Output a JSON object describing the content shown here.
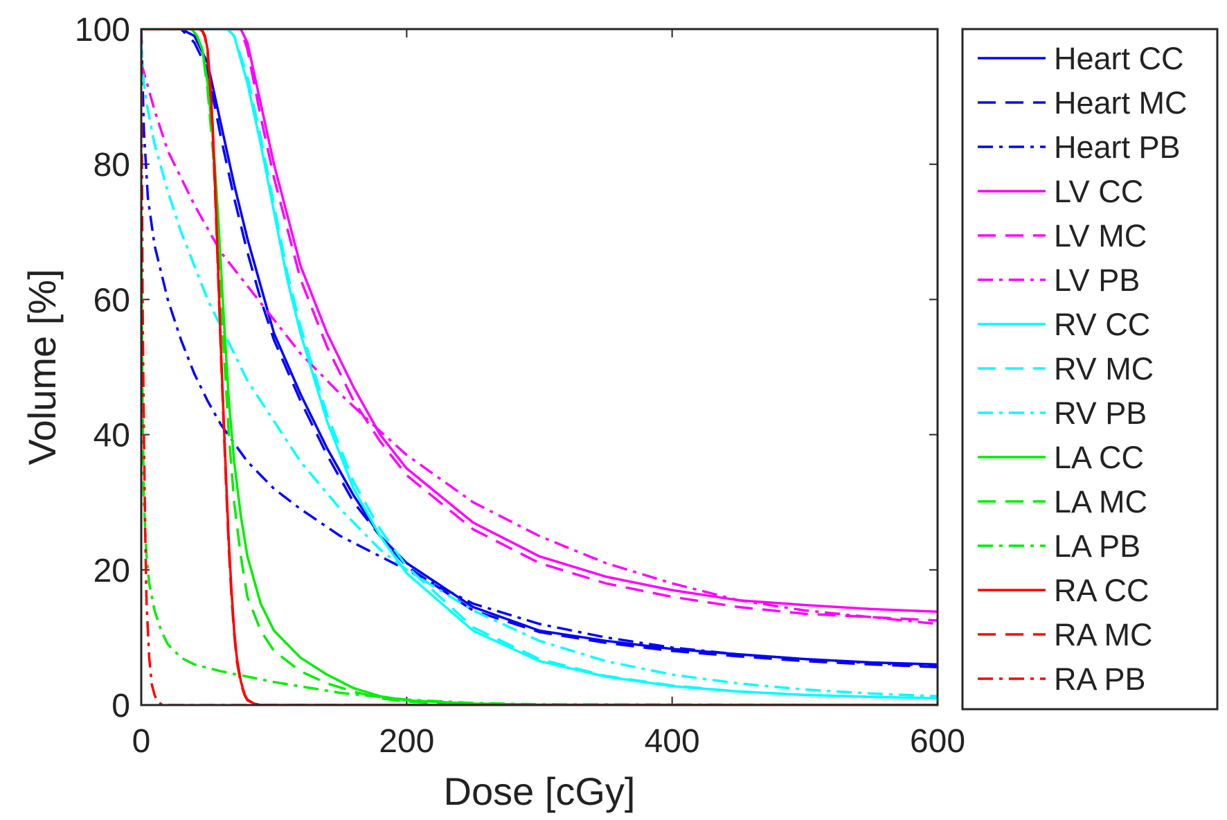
{
  "chart_data": {
    "type": "line",
    "title": "",
    "xlabel": "Dose [cGy]",
    "ylabel": "Volume [%]",
    "xlim": [
      0,
      600
    ],
    "ylim": [
      0,
      100
    ],
    "xticks": [
      0,
      200,
      400,
      600
    ],
    "yticks": [
      0,
      20,
      40,
      60,
      80,
      100
    ],
    "grid": false,
    "legend_position": "outside-right",
    "series": [
      {
        "name": "Heart CC",
        "color": "#0000ff",
        "dash": "solid",
        "x": [
          0,
          30,
          40,
          50,
          60,
          70,
          80,
          90,
          100,
          120,
          140,
          160,
          180,
          200,
          250,
          300,
          350,
          400,
          450,
          500,
          550,
          600
        ],
        "y": [
          100,
          100,
          99,
          95,
          86,
          77,
          69,
          62,
          55,
          46,
          38,
          31,
          25,
          21,
          14.5,
          11,
          9.5,
          8.3,
          7.5,
          6.8,
          6.3,
          6.0
        ]
      },
      {
        "name": "Heart MC",
        "color": "#0000ff",
        "dash": "dashed",
        "x": [
          0,
          30,
          40,
          50,
          60,
          70,
          80,
          90,
          100,
          120,
          140,
          160,
          180,
          200,
          250,
          300,
          350,
          400,
          450,
          500,
          550,
          600
        ],
        "y": [
          100,
          100,
          98,
          94,
          84,
          75,
          67,
          60,
          54,
          45,
          37,
          30,
          25,
          20.5,
          14,
          10.8,
          9.2,
          8.0,
          7.2,
          6.5,
          6.0,
          5.6
        ]
      },
      {
        "name": "Heart PB",
        "color": "#0000ff",
        "dash": "dashdot",
        "x": [
          0,
          2,
          5,
          10,
          20,
          30,
          40,
          50,
          60,
          80,
          100,
          120,
          150,
          180,
          200,
          250,
          300,
          350,
          400,
          450,
          500,
          550,
          600
        ],
        "y": [
          100,
          85,
          75,
          68,
          60,
          54,
          49,
          45,
          41.5,
          36,
          32,
          29,
          25,
          22,
          20,
          15,
          12,
          10,
          8.5,
          7.5,
          6.8,
          6.2,
          5.8
        ]
      },
      {
        "name": "LV CC",
        "color": "#ff00ff",
        "dash": "solid",
        "x": [
          0,
          60,
          70,
          75,
          80,
          90,
          100,
          120,
          140,
          160,
          180,
          200,
          250,
          300,
          350,
          400,
          450,
          500,
          550,
          600
        ],
        "y": [
          100,
          100,
          100,
          100,
          98,
          89,
          80,
          65,
          55,
          47,
          40,
          35,
          27,
          22,
          19,
          17,
          15.5,
          14.8,
          14.2,
          13.8
        ]
      },
      {
        "name": "LV MC",
        "color": "#ff00ff",
        "dash": "dashed",
        "x": [
          0,
          60,
          70,
          75,
          80,
          90,
          100,
          120,
          140,
          160,
          180,
          200,
          250,
          300,
          350,
          400,
          450,
          500,
          550,
          600
        ],
        "y": [
          100,
          100,
          100,
          100,
          97,
          87,
          78,
          63,
          53,
          45,
          39,
          34,
          26,
          21,
          18,
          16,
          14.5,
          13.5,
          13,
          12.5
        ]
      },
      {
        "name": "LV PB",
        "color": "#ff00ff",
        "dash": "dashdot",
        "x": [
          0,
          10,
          20,
          40,
          60,
          80,
          100,
          120,
          150,
          180,
          200,
          250,
          300,
          350,
          400,
          450,
          500,
          550,
          600
        ],
        "y": [
          95,
          88,
          82,
          74,
          67,
          62,
          57,
          52,
          46,
          40.5,
          37,
          30,
          25,
          21,
          18,
          15.5,
          14,
          13,
          12
        ]
      },
      {
        "name": "RV CC",
        "color": "#00ffff",
        "dash": "solid",
        "x": [
          0,
          60,
          65,
          70,
          80,
          90,
          100,
          110,
          120,
          140,
          160,
          180,
          200,
          250,
          300,
          350,
          400,
          450,
          500,
          550,
          600
        ],
        "y": [
          100,
          100,
          100,
          99,
          92,
          83,
          73,
          63,
          55,
          42,
          32,
          25,
          19.5,
          11,
          6.5,
          4.2,
          2.8,
          2.0,
          1.5,
          1.2,
          1.0
        ]
      },
      {
        "name": "RV MC",
        "color": "#00ffff",
        "dash": "dashed",
        "x": [
          0,
          60,
          65,
          70,
          80,
          90,
          100,
          110,
          120,
          140,
          160,
          180,
          200,
          250,
          300,
          350,
          400,
          450,
          500,
          550,
          600
        ],
        "y": [
          100,
          100,
          100,
          99,
          93,
          84,
          74,
          64,
          56,
          43,
          33,
          26,
          20.5,
          11.5,
          6.8,
          4.3,
          2.9,
          2.0,
          1.5,
          1.2,
          1.0
        ]
      },
      {
        "name": "RV PB",
        "color": "#00ffff",
        "dash": "dashdot",
        "x": [
          0,
          2,
          5,
          10,
          20,
          30,
          40,
          50,
          60,
          70,
          80,
          100,
          120,
          150,
          180,
          200,
          250,
          300,
          350,
          400,
          450,
          500,
          550,
          600
        ],
        "y": [
          98,
          92,
          88,
          83,
          76,
          70,
          65,
          60,
          56,
          52,
          48,
          42,
          36,
          29,
          23,
          20,
          14,
          9.5,
          6.5,
          4.5,
          3.2,
          2.3,
          1.7,
          1.3
        ]
      },
      {
        "name": "LA CC",
        "color": "#00ee00",
        "dash": "solid",
        "x": [
          0,
          38,
          42,
          46,
          50,
          54,
          58,
          62,
          66,
          70,
          75,
          80,
          90,
          100,
          120,
          140,
          160,
          180,
          200,
          250,
          300,
          600
        ],
        "y": [
          100,
          100,
          99,
          97,
          92,
          84,
          72,
          58,
          45,
          36,
          28,
          22,
          15,
          11,
          7,
          4.5,
          2.5,
          1.3,
          0.7,
          0.2,
          0.05,
          0
        ]
      },
      {
        "name": "LA MC",
        "color": "#00ee00",
        "dash": "dashed",
        "x": [
          0,
          38,
          42,
          46,
          50,
          54,
          58,
          62,
          66,
          70,
          75,
          80,
          90,
          100,
          120,
          140,
          160,
          180,
          200,
          250,
          300,
          600
        ],
        "y": [
          100,
          100,
          99,
          97,
          91,
          82,
          68,
          53,
          40,
          30,
          22,
          16,
          11,
          8,
          5,
          3.2,
          2,
          1,
          0.5,
          0.1,
          0,
          0
        ]
      },
      {
        "name": "LA PB",
        "color": "#00ee00",
        "dash": "dashdot",
        "x": [
          0,
          1,
          2,
          4,
          6,
          10,
          15,
          20,
          30,
          40,
          60,
          80,
          100,
          150,
          200,
          250,
          300,
          600
        ],
        "y": [
          70,
          45,
          30,
          22,
          18,
          14,
          11,
          9,
          7,
          6,
          5,
          4.2,
          3.4,
          1.8,
          0.8,
          0.3,
          0.1,
          0
        ]
      },
      {
        "name": "RA CC",
        "color": "#ff0000",
        "dash": "solid",
        "x": [
          0,
          40,
          42,
          44,
          46,
          48,
          50,
          52,
          54,
          56,
          58,
          60,
          62,
          64,
          66,
          68,
          70,
          72,
          75,
          78,
          80,
          85,
          90,
          600
        ],
        "y": [
          100,
          100,
          100,
          100,
          99.8,
          99,
          97,
          92,
          85,
          75,
          64,
          53,
          43,
          33,
          24,
          17,
          11,
          7,
          3.5,
          1.5,
          0.8,
          0.2,
          0,
          0
        ]
      },
      {
        "name": "RA MC",
        "color": "#ff0000",
        "dash": "dashed",
        "x": [
          0,
          40,
          42,
          44,
          46,
          48,
          50,
          52,
          54,
          56,
          58,
          60,
          62,
          64,
          66,
          68,
          70,
          72,
          75,
          78,
          80,
          85,
          90,
          600
        ],
        "y": [
          100,
          100,
          100,
          100,
          99.7,
          98.8,
          96.5,
          91,
          84,
          74,
          63,
          52,
          42,
          32,
          23,
          16,
          10.5,
          6.5,
          3.2,
          1.4,
          0.7,
          0.2,
          0,
          0
        ]
      },
      {
        "name": "RA PB",
        "color": "#ff0000",
        "dash": "dashdot",
        "x": [
          0,
          0.5,
          1,
          2,
          3,
          4,
          6,
          8,
          10,
          12,
          15,
          20,
          600
        ],
        "y": [
          100,
          80,
          60,
          40,
          25,
          15,
          7,
          3,
          1.5,
          0.6,
          0.1,
          0,
          0
        ]
      }
    ]
  }
}
